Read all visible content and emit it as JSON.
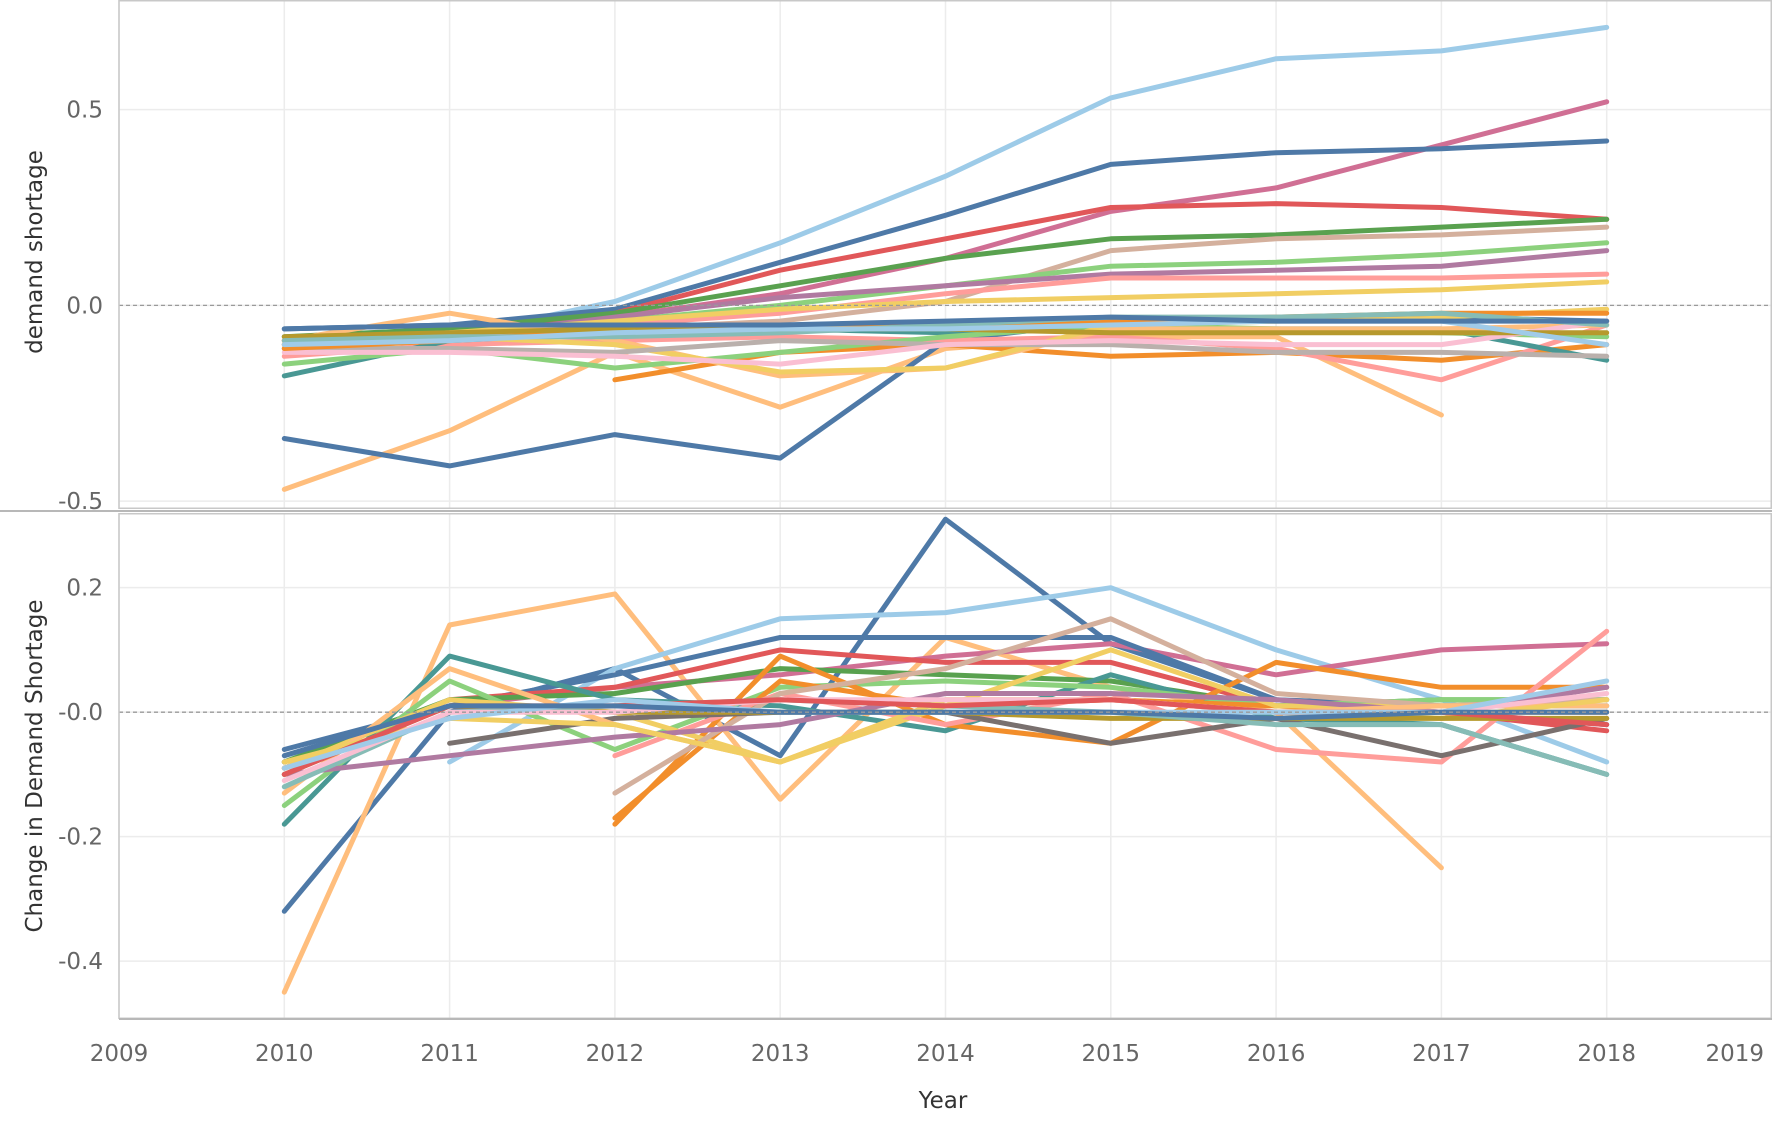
{
  "chart_data": [
    {
      "type": "line",
      "panel": "top",
      "ylabel": "demand shortage",
      "xlabel": "",
      "ylim": [
        -0.52,
        0.78
      ],
      "yticks": [
        0.5,
        0.0,
        -0.5
      ],
      "ytick_labels": [
        "0.5",
        "0.0",
        "-0.5"
      ],
      "grid": true,
      "reference_line": 0,
      "x": [
        2010,
        2011,
        2012,
        2013,
        2014,
        2015,
        2016,
        2017,
        2018
      ],
      "series": [
        {
          "color": "#9dcbe8",
          "values": [
            -0.08,
            -0.08,
            0.01,
            0.16,
            0.33,
            0.53,
            0.63,
            0.65,
            0.71
          ]
        },
        {
          "color": "#d06f94",
          "values": [
            -0.09,
            -0.07,
            -0.03,
            0.03,
            0.12,
            0.24,
            0.3,
            0.41,
            0.52
          ]
        },
        {
          "color": "#4e79a7",
          "values": [
            -0.06,
            -0.05,
            -0.01,
            0.11,
            0.23,
            0.36,
            0.39,
            0.4,
            0.42
          ]
        },
        {
          "color": "#e15759",
          "values": [
            -0.09,
            -0.07,
            -0.02,
            0.09,
            0.17,
            0.25,
            0.26,
            0.25,
            0.22
          ]
        },
        {
          "color": "#59a14f",
          "values": [
            -0.08,
            -0.06,
            -0.02,
            0.05,
            0.12,
            0.17,
            0.18,
            0.2,
            0.22
          ]
        },
        {
          "color": "#d4b09d",
          "values": [
            -0.11,
            -0.09,
            -0.06,
            -0.04,
            0.01,
            0.14,
            0.17,
            0.18,
            0.2
          ]
        },
        {
          "color": "#8cd17d",
          "values": [
            -0.1,
            -0.08,
            -0.04,
            0.0,
            0.05,
            0.1,
            0.11,
            0.13,
            0.16
          ]
        },
        {
          "color": "#b07aa1",
          "values": [
            -0.1,
            -0.08,
            -0.03,
            0.02,
            0.05,
            0.08,
            0.09,
            0.1,
            0.14
          ]
        },
        {
          "color": "#ff9d9a",
          "values": [
            -0.1,
            -0.08,
            -0.05,
            -0.02,
            0.03,
            0.07,
            0.07,
            0.07,
            0.08
          ]
        },
        {
          "color": "#f1ce63",
          "values": [
            -0.09,
            -0.07,
            -0.04,
            -0.01,
            0.01,
            0.02,
            0.03,
            0.04,
            0.06
          ]
        },
        {
          "color": "#ffbe7d",
          "values": [
            -0.47,
            -0.32,
            -0.12,
            -0.26,
            -0.11,
            -0.08,
            -0.08,
            -0.28,
            null
          ]
        },
        {
          "color": "#4e79a7",
          "values": [
            -0.34,
            -0.41,
            -0.33,
            -0.39,
            -0.09,
            -0.04,
            -0.03,
            -0.03,
            -0.04
          ]
        },
        {
          "color": "#f28e2b",
          "values": [
            null,
            null,
            -0.19,
            -0.12,
            -0.1,
            -0.13,
            -0.12,
            -0.14,
            -0.1
          ]
        },
        {
          "color": "#ff9d9a",
          "values": [
            -0.13,
            -0.1,
            -0.09,
            -0.08,
            -0.09,
            -0.08,
            -0.11,
            -0.19,
            -0.05
          ]
        },
        {
          "color": "#499894",
          "values": [
            -0.18,
            -0.09,
            -0.07,
            -0.06,
            -0.07,
            -0.06,
            -0.06,
            -0.06,
            -0.14
          ]
        },
        {
          "color": "#8cd17d",
          "values": [
            -0.15,
            -0.11,
            -0.16,
            -0.12,
            -0.08,
            -0.05,
            -0.06,
            -0.07,
            -0.08
          ]
        },
        {
          "color": "#ffbe7d",
          "values": [
            -0.09,
            -0.02,
            -0.09,
            -0.18,
            -0.16,
            -0.06,
            -0.06,
            -0.06,
            -0.05
          ]
        },
        {
          "color": "#f1ce63",
          "values": [
            -0.1,
            -0.08,
            -0.1,
            -0.17,
            -0.16,
            -0.05,
            -0.04,
            -0.03,
            -0.01
          ]
        },
        {
          "color": "#bab0ac",
          "values": [
            -0.11,
            -0.11,
            -0.12,
            -0.09,
            -0.1,
            -0.1,
            -0.12,
            -0.12,
            -0.13
          ]
        },
        {
          "color": "#fabfd2",
          "values": [
            -0.12,
            -0.12,
            -0.13,
            -0.15,
            -0.1,
            -0.09,
            -0.1,
            -0.1,
            -0.04
          ]
        },
        {
          "color": "#f28e2b",
          "values": [
            -0.11,
            -0.09,
            -0.06,
            -0.05,
            -0.05,
            -0.04,
            -0.03,
            -0.02,
            -0.02
          ]
        },
        {
          "color": "#b6992d",
          "values": [
            -0.08,
            -0.07,
            -0.06,
            -0.06,
            -0.06,
            -0.07,
            -0.07,
            -0.07,
            -0.07
          ]
        },
        {
          "color": "#86bcb6",
          "values": [
            -0.09,
            -0.08,
            -0.08,
            -0.07,
            -0.05,
            -0.03,
            -0.03,
            -0.02,
            -0.05
          ]
        },
        {
          "color": "#a0cbe8",
          "values": [
            -0.1,
            -0.09,
            -0.07,
            -0.06,
            -0.06,
            -0.05,
            -0.04,
            -0.04,
            -0.1
          ]
        },
        {
          "color": "#4e79a7",
          "values": [
            -0.06,
            -0.05,
            -0.05,
            -0.05,
            -0.04,
            -0.03,
            -0.04,
            -0.04,
            -0.04
          ]
        }
      ]
    },
    {
      "type": "line",
      "panel": "bottom",
      "ylabel": "Change in Demand Shortage",
      "xlabel": "Year",
      "ylim": [
        -0.493,
        0.32
      ],
      "yticks": [
        0.2,
        0.0,
        -0.2,
        -0.4
      ],
      "ytick_labels": [
        "0.2",
        "-0.0",
        "-0.2",
        "-0.4"
      ],
      "grid": true,
      "reference_line": 0,
      "x": [
        2010,
        2011,
        2012,
        2013,
        2014,
        2015,
        2016,
        2017,
        2018
      ],
      "xlim": [
        2009,
        2019
      ],
      "xticks": [
        "2009",
        "2010",
        "2011",
        "2012",
        "2013",
        "2014",
        "2015",
        "2016",
        "2017",
        "2018",
        "2019"
      ],
      "series": [
        {
          "color": "#4e79a7",
          "values": [
            -0.32,
            0.0,
            0.07,
            -0.07,
            0.31,
            0.11,
            0.02,
            0.0,
            -0.02
          ]
        },
        {
          "color": "#ffbe7d",
          "values": [
            -0.45,
            0.14,
            0.19,
            -0.14,
            0.12,
            0.04,
            0.0,
            -0.25,
            null
          ]
        },
        {
          "color": "#9dcbe8",
          "values": [
            null,
            -0.08,
            0.07,
            0.15,
            0.16,
            0.2,
            0.1,
            0.02,
            -0.08
          ]
        },
        {
          "color": "#d06f94",
          "values": [
            -0.08,
            0.01,
            0.04,
            0.06,
            0.09,
            0.11,
            0.06,
            0.1,
            0.11
          ]
        },
        {
          "color": "#4e79a7",
          "values": [
            -0.06,
            0.01,
            0.06,
            0.12,
            0.12,
            0.12,
            0.02,
            0.01,
            0.01
          ]
        },
        {
          "color": "#e15759",
          "values": [
            -0.09,
            0.02,
            0.04,
            0.1,
            0.08,
            0.08,
            0.01,
            0.0,
            -0.03
          ]
        },
        {
          "color": "#59a14f",
          "values": [
            -0.08,
            0.02,
            0.03,
            0.07,
            0.06,
            0.05,
            0.01,
            0.02,
            0.02
          ]
        },
        {
          "color": "#499894",
          "values": [
            -0.18,
            0.09,
            0.02,
            0.01,
            -0.03,
            0.06,
            -0.01,
            -0.02,
            -0.1
          ]
        },
        {
          "color": "#8cd17d",
          "values": [
            -0.15,
            0.05,
            -0.06,
            0.04,
            0.05,
            0.04,
            0.01,
            0.02,
            0.02
          ]
        },
        {
          "color": "#f28e2b",
          "values": [
            null,
            null,
            -0.18,
            0.09,
            -0.02,
            -0.05,
            0.08,
            0.04,
            0.04
          ]
        },
        {
          "color": "#f28e2b",
          "values": [
            null,
            null,
            -0.17,
            0.05,
            0.01,
            0.02,
            0.01,
            0.0,
            0.0
          ]
        },
        {
          "color": "#f1ce63",
          "values": [
            -0.09,
            0.02,
            0.0,
            -0.08,
            0.01,
            0.1,
            0.01,
            0.01,
            0.02
          ]
        },
        {
          "color": "#ff9d9a",
          "values": [
            null,
            null,
            -0.07,
            0.03,
            -0.02,
            0.03,
            -0.06,
            -0.08,
            0.13
          ]
        },
        {
          "color": "#d4b09d",
          "values": [
            null,
            null,
            -0.13,
            0.03,
            0.07,
            0.15,
            0.03,
            0.01,
            0.02
          ]
        },
        {
          "color": "#b07aa1",
          "values": [
            -0.1,
            -0.07,
            -0.04,
            -0.02,
            0.03,
            0.03,
            0.02,
            0.0,
            0.04
          ]
        },
        {
          "color": "#79706e",
          "values": [
            null,
            -0.05,
            -0.01,
            0.0,
            0.0,
            -0.05,
            -0.01,
            -0.07,
            -0.01
          ]
        },
        {
          "color": "#ffbe7d",
          "values": [
            -0.13,
            0.07,
            -0.02,
            -0.08,
            0.02,
            0.02,
            0.0,
            0.01,
            0.01
          ]
        },
        {
          "color": "#f1ce63",
          "values": [
            -0.08,
            -0.01,
            -0.02,
            -0.08,
            0.02,
            0.02,
            0.0,
            -0.01,
            0.02
          ]
        },
        {
          "color": "#b6992d",
          "values": [
            -0.1,
            0.01,
            0.0,
            0.0,
            0.0,
            -0.01,
            -0.01,
            -0.01,
            -0.01
          ]
        },
        {
          "color": "#86bcb6",
          "values": [
            -0.12,
            0.0,
            0.01,
            0.02,
            0.01,
            0.0,
            -0.02,
            -0.02,
            -0.1
          ]
        },
        {
          "color": "#fabfd2",
          "values": [
            -0.11,
            0.0,
            0.0,
            0.02,
            0.02,
            0.02,
            0.0,
            0.0,
            0.03
          ]
        },
        {
          "color": "#e15759",
          "values": [
            -0.1,
            0.01,
            0.01,
            0.02,
            0.01,
            0.02,
            0.0,
            0.0,
            -0.02
          ]
        },
        {
          "color": "#a0cbe8",
          "values": [
            -0.09,
            -0.01,
            0.02,
            0.0,
            0.0,
            0.0,
            0.0,
            0.0,
            0.05
          ]
        },
        {
          "color": "#4e79a7",
          "values": [
            -0.07,
            0.01,
            0.01,
            0.0,
            0.0,
            0.0,
            -0.01,
            0.0,
            0.0
          ]
        }
      ]
    }
  ]
}
